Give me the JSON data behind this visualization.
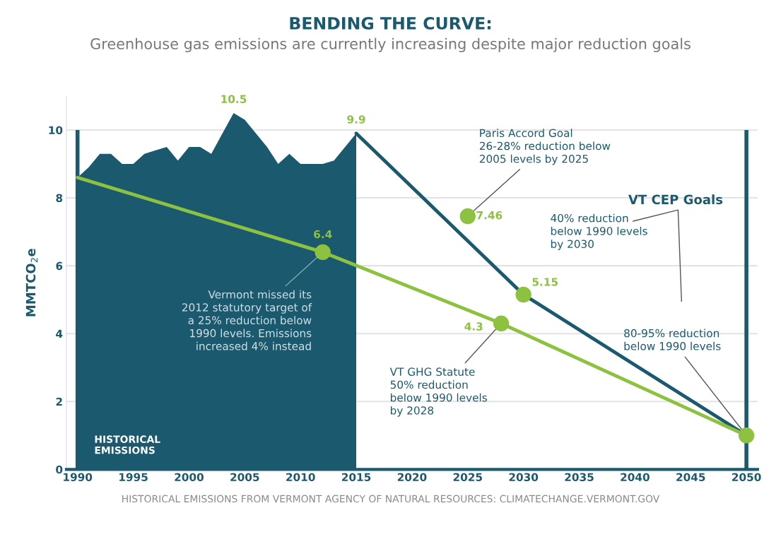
{
  "chart_data": {
    "type": "line",
    "title": "BENDING THE CURVE:",
    "subtitle": "Greenhouse gas emissions are currently increasing despite major reduction goals",
    "ylabel": "MMTCO$_{2}$e",
    "xlim": [
      1989,
      2051
    ],
    "xticks": [
      1990,
      1995,
      2000,
      2005,
      2010,
      2015,
      2020,
      2025,
      2030,
      2035,
      2040,
      2045,
      2050
    ],
    "ylim": [
      0,
      11
    ],
    "yticks": [
      0,
      2,
      4,
      6,
      8,
      10
    ],
    "grid": "y",
    "series": [
      {
        "name": "HISTORICAL\nEMISSIONS",
        "type": "area",
        "color": "#1b5a6e",
        "x": [
          1990,
          1991,
          1992,
          1993,
          1994,
          1995,
          1996,
          1997,
          1998,
          1999,
          2000,
          2001,
          2002,
          2003,
          2004,
          2005,
          2006,
          2007,
          2008,
          2009,
          2010,
          2011,
          2012,
          2013,
          2014,
          2015
        ],
        "values": [
          8.6,
          8.9,
          9.3,
          9.3,
          9.0,
          9.0,
          9.3,
          9.4,
          9.5,
          9.1,
          9.5,
          9.5,
          9.3,
          9.9,
          10.5,
          10.3,
          9.9,
          9.5,
          9.0,
          9.3,
          9.0,
          9.0,
          9.0,
          9.1,
          9.5,
          9.9
        ],
        "value_labels": [
          null,
          null,
          null,
          null,
          null,
          null,
          null,
          null,
          null,
          null,
          null,
          null,
          null,
          null,
          "10.5",
          null,
          null,
          null,
          null,
          null,
          null,
          null,
          null,
          null,
          null,
          "9.9"
        ]
      },
      {
        "color": "#1b5a6e",
        "x": [
          2015,
          2030,
          2050
        ],
        "values": [
          9.9,
          5.15,
          1.0
        ]
      },
      {
        "color": "#8cc240",
        "x": [
          1990,
          2012,
          2028,
          2050
        ],
        "values": [
          8.6,
          6.4,
          4.3,
          1.0
        ]
      },
      {
        "type": "scatter",
        "color": "#8cc240",
        "x": [
          2012,
          2025,
          2028,
          2030,
          2050
        ],
        "values": [
          6.4,
          7.46,
          4.3,
          5.15,
          1.0
        ],
        "value_labels": [
          "6.4",
          "7.46",
          "4.3",
          "5.15",
          null
        ]
      }
    ],
    "ref_lines": [
      {
        "axis": "x",
        "value": 1990,
        "color": "#1b5a6e"
      },
      {
        "axis": "x",
        "value": 2050,
        "color": "#1b5a6e"
      }
    ],
    "annotations": [
      {
        "text": "Vermont missed its\n2012 statutory target of\na 25% reduction below\n1990 levels. Emissions\nincreased 4% instead",
        "x": 2012,
        "y": 6.4
      },
      {
        "text": "Paris Accord Goal\n26-28% reduction below\n2005 levels by 2025",
        "x": 2025,
        "y": 7.46
      },
      {
        "text": "VT GHG Statute\n50% reduction\nbelow 1990 levels\nby 2028",
        "x": 2028,
        "y": 4.3
      },
      "VT CEP Goals",
      "40% reduction\nbelow 1990 levels\nby 2030",
      {
        "text": "80-95% reduction\nbelow 1990 levels",
        "x": 2050,
        "y": 1.0
      },
      "HISTORICAL EMISSIONS FROM VERMONT AGENCY OF NATURAL RESOURCES: CLIMATECHANGE.VERMONT.GOV"
    ]
  }
}
